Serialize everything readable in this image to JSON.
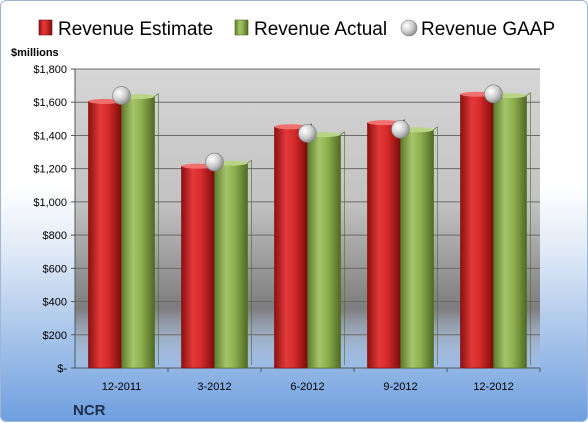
{
  "chart_data": {
    "type": "bar",
    "title": "",
    "ticker": "NCR",
    "ylabel": "$millions",
    "xlabel": "",
    "categories": [
      "12-2011",
      "3-2012",
      "6-2012",
      "9-2012",
      "12-2012"
    ],
    "series": [
      {
        "name": "Revenue Estimate",
        "type": "bar",
        "color": "#d92b2b",
        "values": [
          1605,
          1215,
          1452,
          1477,
          1648
        ]
      },
      {
        "name": "Revenue Actual",
        "type": "bar",
        "color": "#8fb04f",
        "values": [
          1634,
          1233,
          1405,
          1434,
          1640
        ]
      },
      {
        "name": "Revenue GAAP",
        "type": "marker",
        "color": "#c8c8c8",
        "values": [
          1640,
          1240,
          1412,
          1437,
          1650
        ]
      }
    ],
    "ylim": [
      0,
      1800
    ],
    "yticks": [
      0,
      200,
      400,
      600,
      800,
      1000,
      1200,
      1400,
      1600,
      1800
    ],
    "ytick_labels": [
      "$-",
      "$200",
      "$400",
      "$600",
      "$800",
      "$1,000",
      "$1,200",
      "$1,400",
      "$1,600",
      "$1,800"
    ],
    "grid": true,
    "legend_position": "top"
  }
}
